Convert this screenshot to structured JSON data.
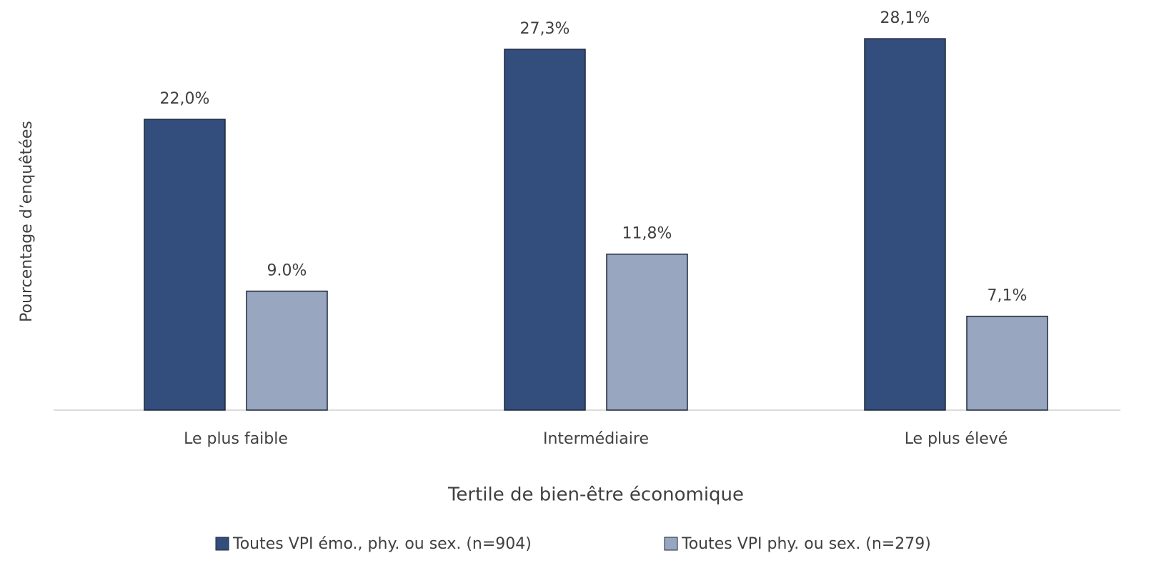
{
  "chart_data": {
    "type": "bar",
    "ylabel": "Pourcentage d’enquêtées",
    "xlabel": "Tertile de bien-être économique",
    "categories": [
      "Le plus faible",
      "Intermédiaire",
      "Le plus élevé"
    ],
    "series": [
      {
        "name": "Toutes VPI émo., phy. ou sex. (n=904)",
        "color": "#334d7c",
        "values": [
          22.0,
          27.3,
          28.1
        ],
        "value_labels": [
          "22,0%",
          "27,3%",
          "28,1%"
        ]
      },
      {
        "name": "Toutes VPI phy. ou sex. (n=279)",
        "color": "#99a6c0",
        "values": [
          9.0,
          11.8,
          7.1
        ],
        "value_labels": [
          "9.0%",
          "11,8%",
          "7,1%"
        ]
      }
    ],
    "ylim": [
      0,
      30
    ],
    "legend": "bottom"
  }
}
